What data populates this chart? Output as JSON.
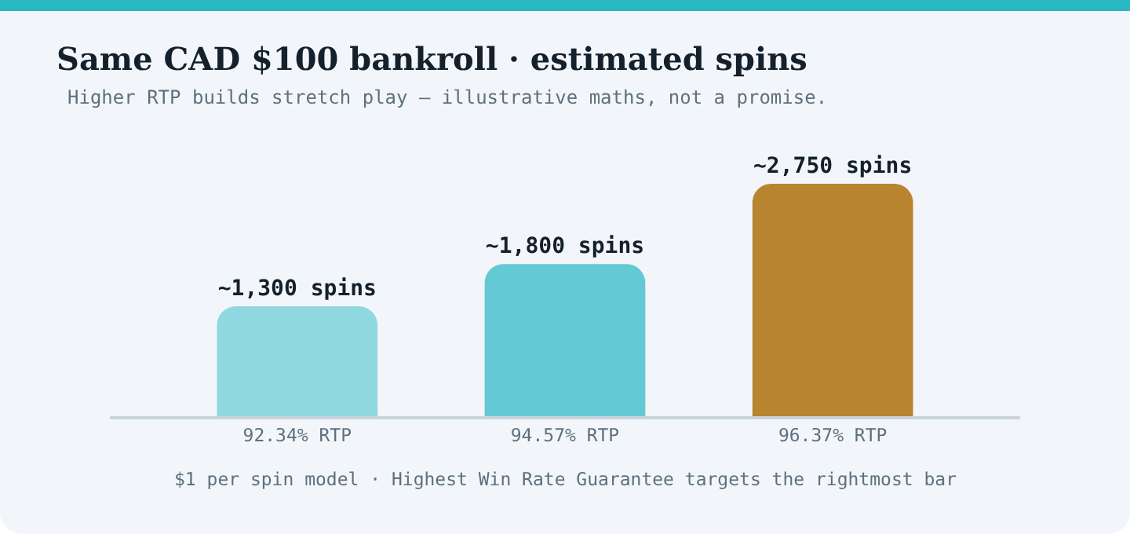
{
  "chart_data": {
    "type": "bar",
    "title": "Same CAD $100 bankroll · estimated spins",
    "subtitle": "Higher RTP builds stretch play — illustrative maths, not a promise.",
    "categories": [
      "92.34% RTP",
      "94.57% RTP",
      "96.37% RTP"
    ],
    "values": [
      1300,
      1800,
      2750
    ],
    "colors": [
      "#8fd8e0",
      "#63c9d4",
      "#b8842f"
    ],
    "value_labels": [
      "~1,300 spins",
      "~1,800 spins",
      "~2,750 spins"
    ],
    "annotations": [
      "$1 per spin model · Highest Win Rate Guarantee targets the rightmost bar"
    ],
    "grid": false
  }
}
